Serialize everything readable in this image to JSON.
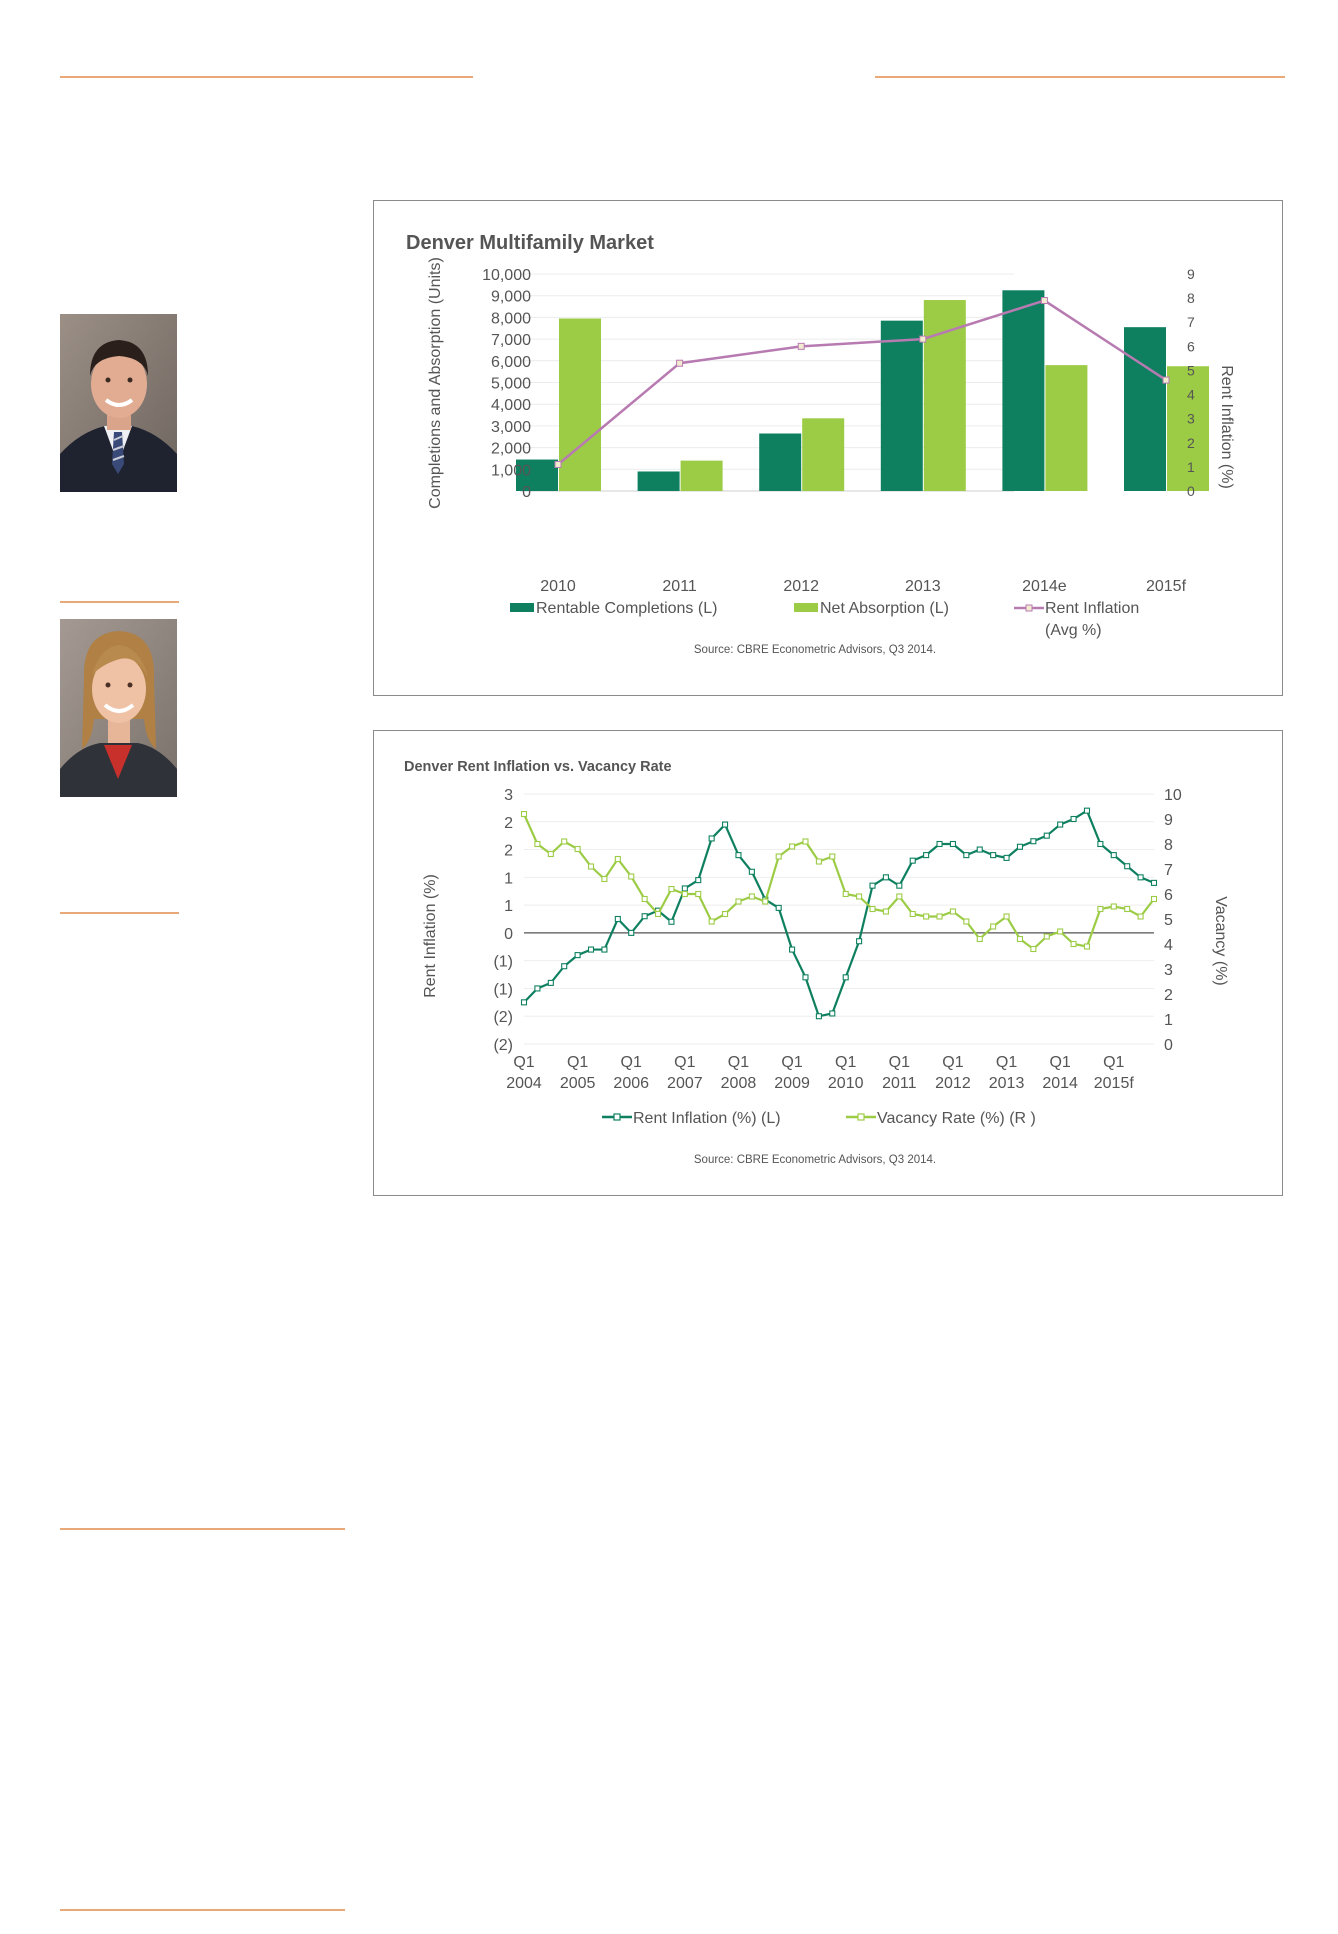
{
  "colors": {
    "rule": "#e8a878",
    "dark_green": "#0e8060",
    "light_green": "#9ccc45",
    "purple": "#b77ab1",
    "axis_text": "#555555",
    "gridline": "#e6e6e6"
  },
  "photos": {
    "man": {
      "icon": "portrait-man-in-suit"
    },
    "woman": {
      "icon": "portrait-woman-blonde"
    }
  },
  "chart_data": [
    {
      "type": "bar",
      "title": "Denver Multifamily Market",
      "ylabel": "Completions and Absorption (Units)",
      "y2label": "Rent Inflation (%)",
      "categories": [
        "2010",
        "2011",
        "2012",
        "2013",
        "2014e",
        "2015f"
      ],
      "ylim": [
        0,
        10000
      ],
      "yticks": [
        "10,000",
        "9,000",
        "8,000",
        "7,000",
        "6,000",
        "5,000",
        "4,000",
        "3,000",
        "2,000",
        "1,000",
        "0"
      ],
      "y2lim": [
        0,
        9
      ],
      "y2ticks": [
        "9",
        "8",
        "7",
        "6",
        "5",
        "4",
        "3",
        "2",
        "1",
        "0"
      ],
      "series": [
        {
          "name": "Rentable Completions (L)",
          "kind": "bar",
          "color": "#0e8060",
          "values": [
            1450,
            900,
            2650,
            7850,
            9250,
            7550
          ]
        },
        {
          "name": "Net Absorption (L)",
          "kind": "bar",
          "color": "#9ccc45",
          "values": [
            7950,
            1400,
            3350,
            8800,
            5800,
            5750
          ]
        },
        {
          "name": "Rent Inflation",
          "name_line2": "(Avg %)",
          "kind": "line",
          "axis": "right",
          "color": "#b77ab1",
          "values": [
            1.1,
            5.3,
            6.0,
            6.3,
            7.9,
            4.6
          ]
        }
      ],
      "source": "Source: CBRE Econometric Advisors, Q3 2014."
    },
    {
      "type": "line",
      "title": "Denver Rent Inflation vs. Vacancy Rate",
      "ylabel": "Rent Inflation (%)",
      "y2label": "Vacancy (%)",
      "ylim": [
        -2,
        2.5
      ],
      "yticks": [
        "3",
        "2",
        "2",
        "1",
        "1",
        "0",
        "(1)",
        "(1)",
        "(2)",
        "(2)"
      ],
      "y2lim": [
        0,
        10
      ],
      "y2ticks": [
        "10",
        "9",
        "8",
        "7",
        "6",
        "5",
        "4",
        "3",
        "2",
        "1",
        "0"
      ],
      "xticks_line1": [
        "Q1",
        "Q1",
        "Q1",
        "Q1",
        "Q1",
        "Q1",
        "Q1",
        "Q1",
        "Q1",
        "Q1",
        "Q1",
        "Q1"
      ],
      "xticks_line2": [
        "2004",
        "2005",
        "2006",
        "2007",
        "2008",
        "2009",
        "2010",
        "2011",
        "2012",
        "2013",
        "2014",
        "2015f"
      ],
      "series": [
        {
          "name": "Rent Inflation (%) (L)",
          "axis": "left",
          "color": "#0e8060",
          "values": [
            -1.25,
            -1.0,
            -0.9,
            -0.6,
            -0.4,
            -0.3,
            -0.3,
            0.25,
            0.0,
            0.3,
            0.4,
            0.2,
            0.8,
            0.95,
            1.7,
            1.95,
            1.4,
            1.1,
            0.6,
            0.45,
            -0.3,
            -0.8,
            -1.5,
            -1.45,
            -0.8,
            -0.15,
            0.85,
            1.0,
            0.85,
            1.3,
            1.4,
            1.6,
            1.6,
            1.4,
            1.5,
            1.4,
            1.35,
            1.55,
            1.65,
            1.75,
            1.95,
            2.05,
            2.2,
            1.6,
            1.4,
            1.2,
            1.0,
            0.9
          ]
        },
        {
          "name": "Vacancy Rate (%) (R )",
          "axis": "right",
          "color": "#9ccc45",
          "values": [
            9.2,
            8.0,
            7.6,
            8.1,
            7.8,
            7.1,
            6.6,
            7.4,
            6.7,
            5.8,
            5.2,
            6.2,
            6.0,
            6.0,
            4.9,
            5.2,
            5.7,
            5.9,
            5.7,
            7.5,
            7.9,
            8.1,
            7.3,
            7.5,
            6.0,
            5.9,
            5.4,
            5.3,
            5.9,
            5.2,
            5.1,
            5.1,
            5.3,
            4.9,
            4.2,
            4.7,
            5.1,
            4.2,
            3.8,
            4.3,
            4.5,
            4.0,
            3.9,
            5.4,
            5.5,
            5.4,
            5.1,
            5.8
          ]
        }
      ],
      "source": "Source: CBRE Econometric Advisors, Q3 2014."
    }
  ]
}
